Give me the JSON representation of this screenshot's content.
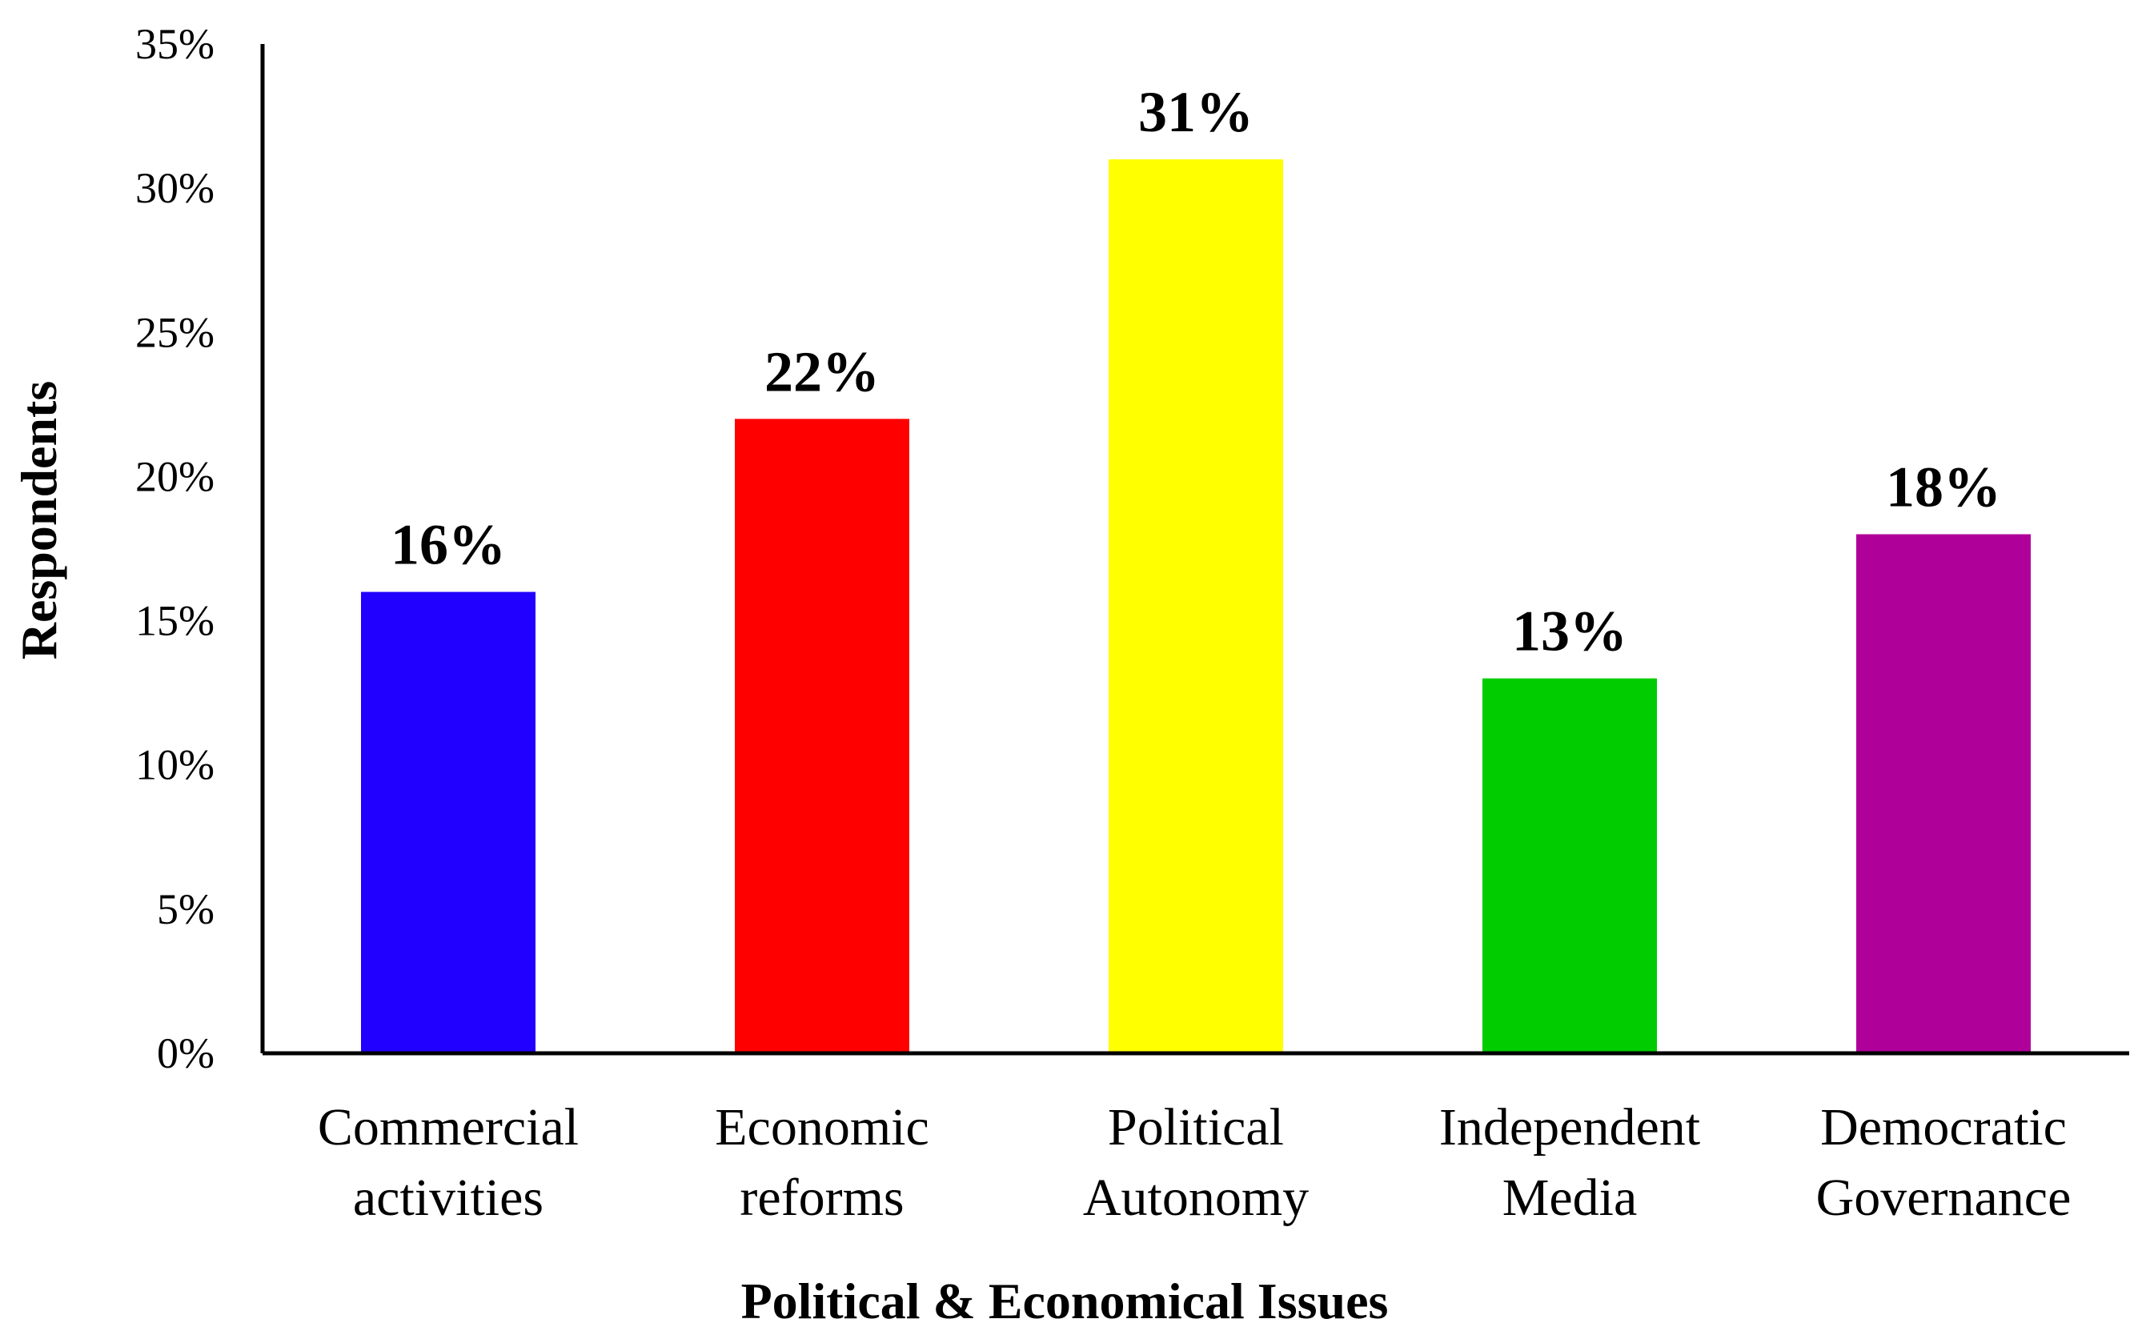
{
  "chart_data": {
    "type": "bar",
    "title": "",
    "xlabel": "Political & Economical Issues",
    "ylabel": "Respondents",
    "categories": [
      [
        "Commercial",
        "activities"
      ],
      [
        "Economic",
        "reforms"
      ],
      [
        "Political",
        "Autonomy"
      ],
      [
        "Independent",
        "Media"
      ],
      [
        "Democratic",
        "Governance"
      ]
    ],
    "values": [
      16,
      22,
      31,
      13,
      18
    ],
    "data_labels": [
      "16%",
      "22%",
      "31%",
      "13%",
      "18%"
    ],
    "colors": [
      "#2200ff",
      "#ff0000",
      "#ffff00",
      "#00cc00",
      "#b0009a"
    ],
    "ylim": [
      0,
      35
    ],
    "yticks": [
      0,
      5,
      10,
      15,
      20,
      25,
      30,
      35
    ],
    "ytick_labels": [
      "0%",
      "5%",
      "10%",
      "15%",
      "20%",
      "25%",
      "30%",
      "35%"
    ],
    "grid": false,
    "legend": "none"
  }
}
